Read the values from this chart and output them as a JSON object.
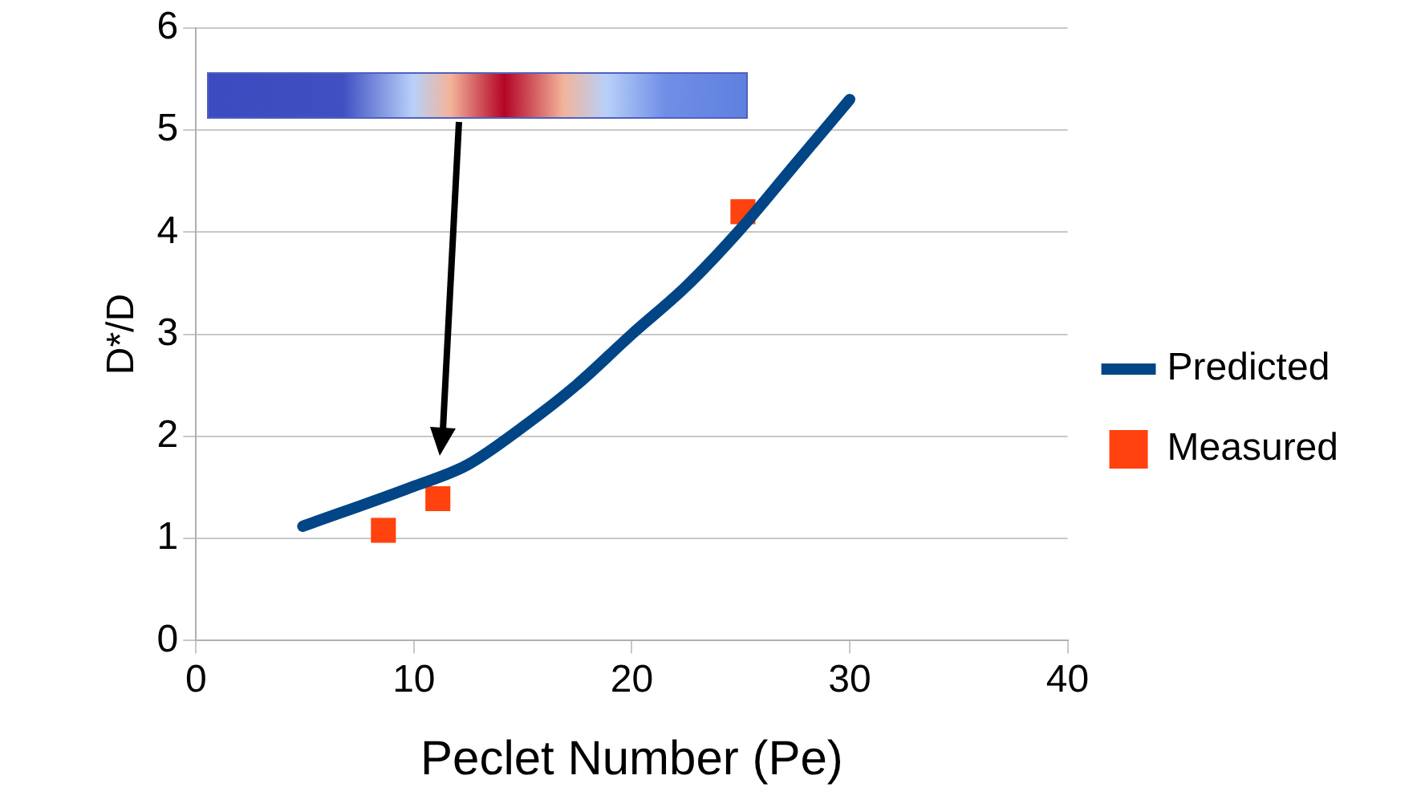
{
  "chart_data": {
    "type": "scatter",
    "xlabel": "Peclet Number (Pe)",
    "ylabel": "D*/D",
    "xlim": [
      0,
      40
    ],
    "xticks": [
      0,
      10,
      20,
      30,
      40
    ],
    "ylim": [
      0,
      6
    ],
    "yticks": [
      0,
      1,
      2,
      3,
      4,
      5,
      6
    ],
    "grid": "y",
    "legend": "right",
    "series": [
      {
        "name": "Predicted",
        "type": "line",
        "color": "#004586",
        "marker": "none",
        "x": [
          4.9,
          9.85,
          12.45,
          15.05,
          17.5,
          20.0,
          22.5,
          24.95,
          27.4,
          30.0
        ],
        "values": [
          1.12,
          1.5,
          1.72,
          2.1,
          2.51,
          3.0,
          3.47,
          4.02,
          4.64,
          5.3
        ]
      },
      {
        "name": "Measured",
        "type": "scatter",
        "color": "#ff420e",
        "marker": "square",
        "x": [
          8.6,
          11.1,
          25.1
        ],
        "values": [
          1.08,
          1.39,
          4.2
        ]
      }
    ]
  }
}
